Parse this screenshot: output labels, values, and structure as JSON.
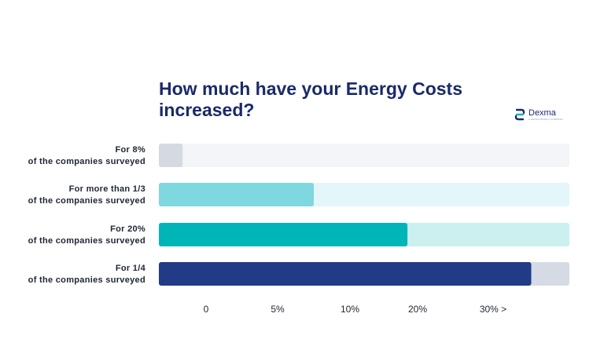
{
  "title": "How much have your Energy Costs increased?",
  "logo": {
    "name": "Dexma",
    "tagline": "A DETECTRONIC COMPANY",
    "icon": "dexma-logo-icon"
  },
  "colors": {
    "title": "#1b2a68",
    "bar_grey": "#d5d9e2",
    "bar_light_teal": "#7fd7e0",
    "bar_teal": "#00b5b8",
    "bar_navy": "#213b86",
    "track_1": "#f4f5f8",
    "track_2": "#e3f6f9",
    "track_3": "#ccefef",
    "track_4": "#d6dae4"
  },
  "chart_data": {
    "type": "bar",
    "orientation": "horizontal",
    "categories": [
      [
        "For 8%",
        "of the companies surveyed"
      ],
      [
        "For more than 1/3",
        "of the companies surveyed"
      ],
      [
        "For 20%",
        "of the companies surveyed"
      ],
      [
        "For 1/4",
        "of the companies surveyed"
      ]
    ],
    "values": [
      1,
      7.5,
      18.5,
      33
    ],
    "bar_colors": [
      "#d5d9e2",
      "#7fd7e0",
      "#00b5b8",
      "#213b86"
    ],
    "track_colors": [
      "#f4f5f8",
      "#e3f6f9",
      "#ccefef",
      "#d6dae4"
    ],
    "ticks": [
      "0",
      "5%",
      "10%",
      "20%",
      "30% >"
    ],
    "tick_values": [
      0,
      5,
      10,
      20,
      30
    ],
    "xlim": [
      0,
      36
    ],
    "grid": false,
    "legend": "none"
  }
}
